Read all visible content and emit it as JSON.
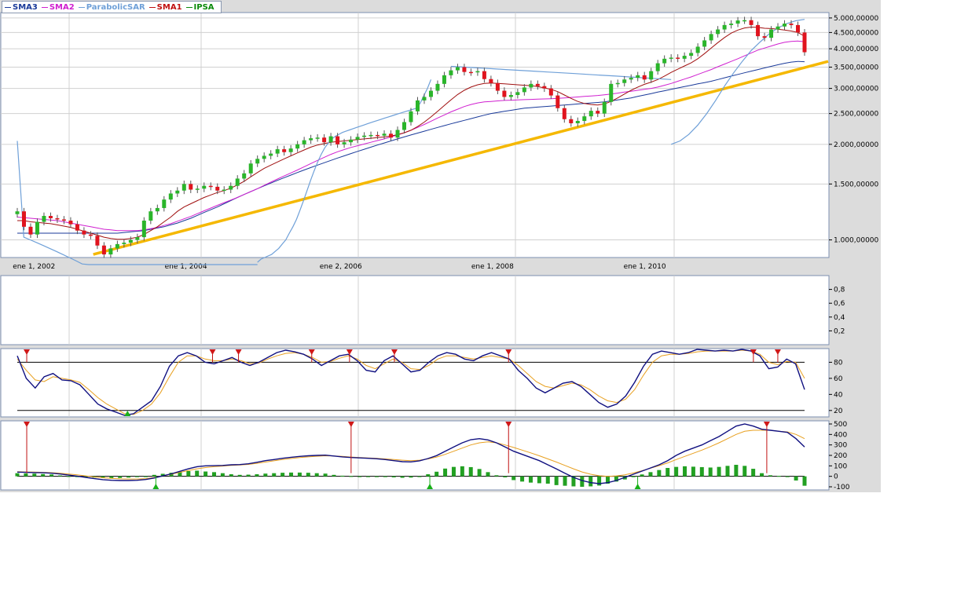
{
  "legend": [
    {
      "label": "SMA3",
      "color": "#1a3a9a"
    },
    {
      "label": "SMA2",
      "color": "#d020d0"
    },
    {
      "label": "ParabolicSAR",
      "color": "#6fa0d8"
    },
    {
      "label": "SMA1",
      "color": "#c01010"
    },
    {
      "label": "IPSA",
      "color": "#0a8a0a"
    }
  ],
  "chart_data": [
    {
      "type": "candlestick",
      "y_scale": "log",
      "ylim": [
        880,
        5200
      ],
      "x_range": [
        "2001-10-01",
        "2012-05-31"
      ],
      "x_ticks": [
        {
          "date": "2001-12-20",
          "label": "ene 1, 2002"
        },
        {
          "date": "2003-12-20",
          "label": "ene 1, 2004"
        },
        {
          "date": "2006-01-02",
          "label": "ene 2, 2006"
        },
        {
          "date": "2008-01-01",
          "label": "ene 1, 2008"
        },
        {
          "date": "2010-01-01",
          "label": "ene 1, 2010"
        }
      ],
      "y_ticks": [
        {
          "value": 1000,
          "label": "1.000,00000"
        },
        {
          "value": 1500,
          "label": "1.500,00000"
        },
        {
          "value": 2000,
          "label": "2.000,00000"
        },
        {
          "value": 2500,
          "label": "2.500,00000"
        },
        {
          "value": 3000,
          "label": "3.000,00000"
        },
        {
          "value": 3500,
          "label": "3.500,00000"
        },
        {
          "value": 4000,
          "label": "4.000,00000"
        },
        {
          "value": 4500,
          "label": "4.500,00000"
        },
        {
          "value": 5000,
          "label": "5.000,00000"
        }
      ],
      "close": [
        1230,
        1100,
        1040,
        1140,
        1190,
        1170,
        1160,
        1150,
        1120,
        1070,
        1040,
        1030,
        960,
        900,
        940,
        970,
        980,
        1000,
        1020,
        1150,
        1230,
        1260,
        1340,
        1400,
        1430,
        1500,
        1440,
        1450,
        1480,
        1470,
        1430,
        1440,
        1480,
        1560,
        1620,
        1740,
        1800,
        1840,
        1870,
        1930,
        1890,
        1940,
        2000,
        2060,
        2090,
        2100,
        2030,
        2120,
        2000,
        2030,
        2070,
        2110,
        2130,
        2140,
        2130,
        2160,
        2100,
        2220,
        2350,
        2540,
        2750,
        2820,
        2950,
        3100,
        3300,
        3420,
        3500,
        3380,
        3370,
        3400,
        3210,
        3120,
        2950,
        2820,
        2860,
        2920,
        3020,
        3100,
        3050,
        3000,
        2850,
        2600,
        2400,
        2330,
        2370,
        2450,
        2550,
        2500,
        2720,
        3100,
        3120,
        3200,
        3240,
        3300,
        3200,
        3400,
        3600,
        3720,
        3750,
        3720,
        3800,
        3880,
        4060,
        4250,
        4450,
        4600,
        4750,
        4800,
        4910,
        4920,
        4750,
        4380,
        4330,
        4600,
        4700,
        4800,
        4750,
        4500,
        3900
      ],
      "sma1": [
        1150,
        1150,
        1140,
        1135,
        1130,
        1125,
        1115,
        1105,
        1095,
        1080,
        1065,
        1050,
        1035,
        1020,
        1010,
        1005,
        1005,
        1010,
        1020,
        1040,
        1070,
        1100,
        1140,
        1180,
        1230,
        1270,
        1300,
        1330,
        1360,
        1385,
        1410,
        1430,
        1455,
        1490,
        1530,
        1580,
        1630,
        1680,
        1720,
        1760,
        1800,
        1840,
        1880,
        1920,
        1960,
        1990,
        2010,
        2030,
        2040,
        2050,
        2060,
        2070,
        2080,
        2090,
        2100,
        2110,
        2125,
        2145,
        2175,
        2215,
        2275,
        2350,
        2440,
        2540,
        2650,
        2760,
        2870,
        2960,
        3030,
        3080,
        3110,
        3120,
        3110,
        3100,
        3090,
        3080,
        3070,
        3060,
        3040,
        3010,
        2980,
        2930,
        2860,
        2790,
        2730,
        2690,
        2670,
        2660,
        2680,
        2730,
        2800,
        2880,
        2960,
        3030,
        3090,
        3140,
        3200,
        3280,
        3370,
        3450,
        3530,
        3610,
        3720,
        3860,
        4020,
        4180,
        4340,
        4480,
        4580,
        4650,
        4680,
        4670,
        4640,
        4630,
        4610,
        4580,
        4550,
        4500,
        4380
      ],
      "sma2": [
        1180,
        1175,
        1170,
        1165,
        1160,
        1155,
        1150,
        1140,
        1130,
        1120,
        1110,
        1100,
        1090,
        1080,
        1075,
        1070,
        1070,
        1070,
        1070,
        1075,
        1085,
        1095,
        1110,
        1125,
        1145,
        1165,
        1185,
        1210,
        1235,
        1260,
        1285,
        1310,
        1335,
        1360,
        1390,
        1420,
        1450,
        1485,
        1520,
        1555,
        1590,
        1625,
        1660,
        1700,
        1740,
        1780,
        1820,
        1860,
        1895,
        1925,
        1955,
        1980,
        2005,
        2030,
        2055,
        2080,
        2110,
        2140,
        2175,
        2215,
        2260,
        2310,
        2365,
        2420,
        2475,
        2530,
        2580,
        2630,
        2670,
        2700,
        2720,
        2730,
        2740,
        2750,
        2755,
        2760,
        2765,
        2770,
        2775,
        2780,
        2785,
        2790,
        2800,
        2810,
        2820,
        2830,
        2840,
        2850,
        2865,
        2880,
        2900,
        2920,
        2940,
        2960,
        2980,
        3000,
        3030,
        3070,
        3110,
        3160,
        3210,
        3260,
        3320,
        3380,
        3440,
        3510,
        3580,
        3650,
        3720,
        3800,
        3880,
        3960,
        4020,
        4080,
        4140,
        4190,
        4220,
        4230,
        4210
      ],
      "sma3": [
        1050,
        1050,
        1050,
        1050,
        1050,
        1050,
        1050,
        1050,
        1050,
        1050,
        1050,
        1050,
        1050,
        1050,
        1050,
        1050,
        1055,
        1060,
        1065,
        1070,
        1080,
        1090,
        1100,
        1115,
        1130,
        1150,
        1170,
        1195,
        1220,
        1245,
        1270,
        1300,
        1330,
        1360,
        1390,
        1420,
        1450,
        1480,
        1510,
        1540,
        1570,
        1600,
        1630,
        1660,
        1690,
        1720,
        1750,
        1780,
        1810,
        1840,
        1870,
        1900,
        1930,
        1960,
        1990,
        2020,
        2050,
        2080,
        2110,
        2140,
        2170,
        2200,
        2230,
        2260,
        2290,
        2320,
        2350,
        2380,
        2410,
        2440,
        2470,
        2500,
        2520,
        2540,
        2560,
        2580,
        2600,
        2610,
        2620,
        2630,
        2640,
        2650,
        2660,
        2670,
        2680,
        2690,
        2700,
        2710,
        2720,
        2740,
        2760,
        2780,
        2800,
        2830,
        2860,
        2890,
        2920,
        2950,
        2980,
        3010,
        3040,
        3070,
        3100,
        3130,
        3160,
        3200,
        3240,
        3280,
        3320,
        3360,
        3400,
        3440,
        3480,
        3520,
        3560,
        3600,
        3630,
        3650,
        3640
      ],
      "sar": [
        [
          2050,
          1020,
          1000,
          980,
          960,
          940,
          920,
          900,
          880,
          860,
          840,
          820,
          810,
          800,
          790,
          780,
          770,
          760,
          750,
          740,
          730,
          720,
          700,
          680,
          660,
          640,
          620,
          600,
          580,
          560,
          540,
          520,
          500,
          480,
          460,
          440,
          420,
          400
        ],
        [
          850,
          870,
          880,
          890,
          900,
          920,
          940,
          970,
          1000,
          1050,
          1100,
          1160,
          1240,
          1330,
          1430,
          1540,
          1650,
          1760,
          1860,
          1950,
          2020,
          2080,
          2120,
          2150,
          2180,
          2200,
          2220,
          2240,
          2260,
          2280,
          2300,
          2320,
          2340,
          2360,
          2380,
          2400,
          2420,
          2440,
          2460,
          2480,
          2500,
          2520,
          2540,
          2560,
          2580,
          2600,
          2700,
          2850,
          3000,
          3200
        ],
        [
          3520,
          3500,
          3480,
          3460,
          3440,
          3420,
          3400,
          3380,
          3360,
          3340,
          3320,
          3300,
          3280,
          3260,
          3240,
          3220,
          3200
        ],
        [
          2000,
          2050,
          2150,
          2300,
          2500,
          2750,
          3050,
          3350,
          3650,
          3950,
          4200,
          4450,
          4650,
          4800,
          4900,
          4950
        ]
      ],
      "sar_ranges": [
        [
          0,
          36
        ],
        [
          36,
          62
        ],
        [
          65,
          98
        ],
        [
          98,
          118
        ]
      ],
      "trendline": [
        {
          "date": "2002-10-01",
          "value": 900
        },
        {
          "date": "2012-05-31",
          "value": 3650
        }
      ]
    },
    {
      "type": "line",
      "ylim": [
        0,
        1
      ],
      "y_ticks": [
        {
          "value": 0.2,
          "label": "0,2"
        },
        {
          "value": 0.4,
          "label": "0,4"
        },
        {
          "value": 0.6,
          "label": "0,6"
        },
        {
          "value": 0.8,
          "label": "0,8"
        }
      ]
    },
    {
      "type": "line",
      "ylim": [
        12,
        97
      ],
      "y_ticks": [
        {
          "value": 20,
          "label": "20"
        },
        {
          "value": 40,
          "label": "40"
        },
        {
          "value": 60,
          "label": "60"
        },
        {
          "value": 80,
          "label": "80"
        }
      ],
      "hlines": [
        80,
        20
      ],
      "k": [
        88,
        60,
        48,
        62,
        66,
        58,
        57,
        52,
        40,
        28,
        22,
        18,
        14,
        16,
        24,
        32,
        50,
        75,
        88,
        92,
        88,
        80,
        78,
        82,
        86,
        80,
        76,
        80,
        86,
        92,
        95,
        93,
        90,
        84,
        76,
        82,
        88,
        90,
        82,
        70,
        68,
        82,
        88,
        78,
        68,
        70,
        80,
        88,
        92,
        90,
        84,
        82,
        88,
        92,
        88,
        84,
        70,
        60,
        48,
        42,
        48,
        54,
        56,
        50,
        40,
        30,
        24,
        28,
        38,
        55,
        75,
        90,
        94,
        92,
        90,
        92,
        96,
        95,
        94,
        95,
        94,
        96,
        94,
        88,
        72,
        74,
        84,
        78,
        46
      ],
      "d": [
        84,
        70,
        58,
        56,
        62,
        60,
        58,
        55,
        46,
        36,
        28,
        22,
        16,
        15,
        20,
        28,
        42,
        62,
        80,
        88,
        88,
        84,
        82,
        82,
        84,
        82,
        78,
        79,
        84,
        88,
        91,
        92,
        90,
        86,
        80,
        81,
        85,
        88,
        84,
        76,
        72,
        78,
        84,
        80,
        72,
        71,
        76,
        84,
        88,
        88,
        86,
        84,
        86,
        88,
        86,
        84,
        76,
        66,
        56,
        50,
        48,
        51,
        54,
        52,
        46,
        38,
        32,
        30,
        34,
        46,
        64,
        80,
        88,
        90,
        90,
        91,
        93,
        94,
        94,
        94,
        94,
        95,
        94,
        90,
        80,
        77,
        81,
        80,
        60
      ],
      "markers_down": [
        0.012,
        0.248,
        0.281,
        0.374,
        0.422,
        0.479,
        0.624,
        0.935,
        0.966
      ],
      "markers_up": [
        0.14
      ]
    },
    {
      "type": "bar+line",
      "ylim": [
        -130,
        530
      ],
      "y_ticks": [
        {
          "value": -100,
          "label": "-100"
        },
        {
          "value": 0,
          "label": "0"
        },
        {
          "value": 100,
          "label": "100"
        },
        {
          "value": 200,
          "label": "200"
        },
        {
          "value": 300,
          "label": "300"
        },
        {
          "value": 400,
          "label": "400"
        },
        {
          "value": 500,
          "label": "500"
        }
      ],
      "macd": [
        40,
        38,
        36,
        34,
        30,
        22,
        12,
        2,
        -10,
        -22,
        -32,
        -38,
        -40,
        -40,
        -38,
        -30,
        -16,
        4,
        24,
        48,
        72,
        92,
        100,
        102,
        104,
        110,
        112,
        120,
        134,
        150,
        160,
        172,
        182,
        190,
        196,
        200,
        202,
        194,
        186,
        180,
        176,
        172,
        168,
        160,
        150,
        140,
        138,
        148,
        170,
        198,
        240,
        280,
        320,
        350,
        360,
        348,
        320,
        280,
        240,
        210,
        180,
        150,
        110,
        70,
        30,
        -10,
        -40,
        -60,
        -70,
        -60,
        -40,
        -10,
        20,
        50,
        80,
        110,
        150,
        200,
        240,
        270,
        300,
        340,
        380,
        430,
        480,
        500,
        480,
        450,
        440,
        430,
        420,
        360,
        280
      ],
      "signal": [
        44,
        42,
        40,
        38,
        35,
        30,
        22,
        14,
        4,
        -6,
        -14,
        -20,
        -24,
        -26,
        -26,
        -22,
        -12,
        4,
        20,
        38,
        56,
        72,
        84,
        92,
        98,
        104,
        108,
        114,
        124,
        136,
        148,
        160,
        170,
        180,
        186,
        192,
        196,
        194,
        190,
        184,
        180,
        176,
        172,
        166,
        160,
        154,
        150,
        154,
        166,
        184,
        210,
        240,
        270,
        300,
        320,
        330,
        320,
        300,
        276,
        250,
        224,
        196,
        166,
        136,
        104,
        72,
        42,
        20,
        6,
        0,
        4,
        14,
        32,
        54,
        78,
        102,
        128,
        160,
        190,
        220,
        250,
        284,
        320,
        360,
        400,
        430,
        440,
        440,
        440,
        430,
        424,
        400,
        360
      ],
      "histogram": [
        30,
        28,
        26,
        22,
        18,
        8,
        2,
        -2,
        -8,
        -12,
        -16,
        -18,
        -16,
        -12,
        -6,
        0,
        14,
        24,
        34,
        44,
        50,
        54,
        46,
        40,
        30,
        20,
        14,
        16,
        20,
        26,
        30,
        34,
        36,
        36,
        34,
        30,
        26,
        14,
        6,
        2,
        0,
        -2,
        -4,
        -6,
        -10,
        -14,
        -12,
        -2,
        20,
        44,
        74,
        90,
        96,
        88,
        70,
        40,
        10,
        -10,
        -36,
        -50,
        -60,
        -66,
        -70,
        -84,
        -90,
        -96,
        -100,
        -96,
        -88,
        -70,
        -50,
        -30,
        -8,
        18,
        40,
        60,
        80,
        90,
        96,
        92,
        88,
        84,
        90,
        100,
        110,
        100,
        72,
        30,
        10,
        4,
        -4,
        -40,
        -90
      ],
      "markers_down": [
        0.012,
        0.424,
        0.624,
        0.952
      ],
      "markers_up": [
        0.176,
        0.524,
        0.788
      ]
    }
  ]
}
